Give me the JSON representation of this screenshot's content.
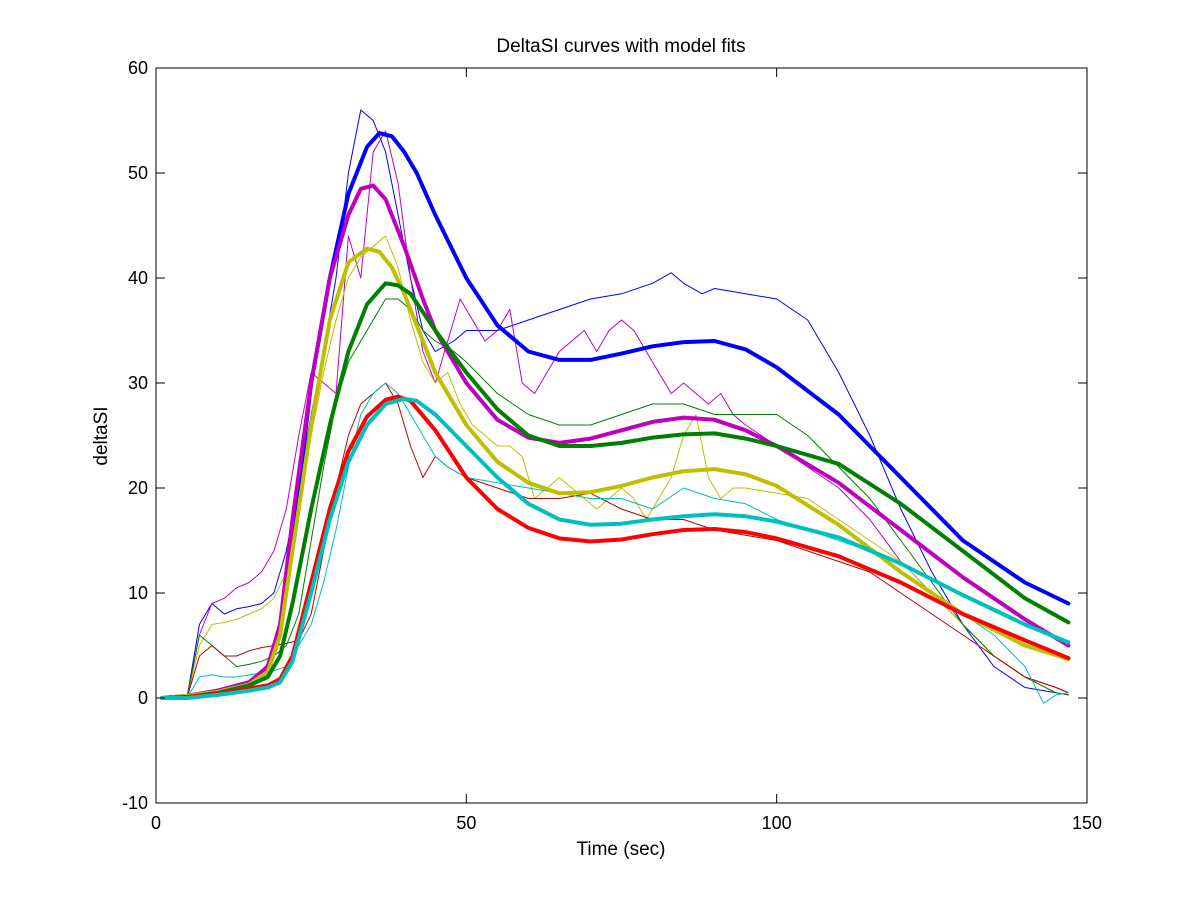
{
  "chart_data": {
    "type": "line",
    "title": "DeltaSI curves with model fits",
    "xlabel": "Time (sec)",
    "ylabel": "deltaSI",
    "xlim": [
      0,
      150
    ],
    "ylim": [
      -10,
      60
    ],
    "xticks": [
      0,
      50,
      100,
      150
    ],
    "yticks": [
      -10,
      0,
      10,
      20,
      30,
      40,
      50,
      60
    ],
    "grid": false,
    "legend": "none",
    "series": [
      {
        "kind": "raw",
        "color": "#0000ff",
        "x": [
          1,
          5,
          7,
          9,
          11,
          13,
          15,
          17,
          19,
          21,
          23,
          25,
          27,
          29,
          31,
          33,
          35,
          37,
          39,
          41,
          43,
          45,
          48,
          50,
          55,
          60,
          65,
          70,
          75,
          80,
          83,
          85,
          88,
          90,
          95,
          100,
          105,
          110,
          115,
          120,
          125,
          130,
          135,
          140,
          145,
          147
        ],
        "y": [
          0,
          0,
          7,
          9,
          8,
          8.5,
          8.7,
          9,
          10,
          14,
          20,
          27,
          33,
          40,
          50,
          56,
          55,
          52,
          46,
          40,
          35,
          33,
          34,
          35,
          35,
          36,
          37,
          38,
          38.5,
          39.5,
          40.5,
          39.5,
          38.5,
          39,
          38.5,
          38,
          36,
          31,
          25,
          18,
          12,
          7,
          3,
          1,
          0.5,
          0.3
        ]
      },
      {
        "kind": "raw",
        "color": "#bf00bf",
        "x": [
          1,
          5,
          7,
          9,
          11,
          13,
          15,
          17,
          19,
          21,
          23,
          25,
          27,
          29,
          31,
          33,
          35,
          37,
          39,
          41,
          43,
          45,
          47,
          49,
          51,
          53,
          55,
          57,
          59,
          61,
          63,
          65,
          67,
          69,
          71,
          73,
          75,
          77,
          79,
          81,
          83,
          85,
          87,
          89,
          91,
          93,
          95,
          100,
          105,
          110,
          115,
          120,
          125,
          130,
          135,
          140,
          145,
          147
        ],
        "y": [
          0,
          0,
          6,
          9,
          9.5,
          10.5,
          11,
          12,
          14,
          18,
          25,
          31,
          30,
          29,
          44,
          40,
          52,
          54,
          49,
          40,
          33,
          30,
          34,
          38,
          36,
          34,
          35,
          37,
          30,
          29,
          31,
          33,
          34,
          35,
          33,
          35,
          36,
          35,
          33,
          31,
          29,
          30,
          29,
          28,
          29,
          27,
          26,
          24,
          22,
          20,
          17,
          13,
          10,
          7,
          4,
          2,
          1,
          0.5
        ]
      },
      {
        "kind": "raw",
        "color": "#bfbf00",
        "x": [
          1,
          5,
          7,
          9,
          11,
          13,
          15,
          17,
          19,
          21,
          23,
          25,
          27,
          29,
          31,
          33,
          35,
          37,
          39,
          41,
          43,
          45,
          47,
          49,
          51,
          53,
          55,
          57,
          59,
          61,
          63,
          65,
          67,
          69,
          71,
          73,
          75,
          77,
          79,
          81,
          83,
          85,
          87,
          89,
          91,
          93,
          95,
          100,
          105,
          110,
          115,
          120,
          125,
          130,
          135,
          140,
          145,
          147
        ],
        "y": [
          0,
          0,
          5,
          7,
          7.2,
          7.5,
          8,
          8.5,
          9.5,
          12,
          18,
          25,
          31,
          36,
          40,
          42,
          43,
          44,
          41,
          36,
          32,
          30,
          31,
          28,
          26,
          25,
          24,
          24,
          23,
          19,
          20,
          21,
          20,
          19,
          18,
          19,
          20,
          19,
          17,
          19,
          21,
          25,
          27,
          21,
          19,
          20,
          20,
          19.5,
          19,
          17,
          15,
          13,
          10,
          7,
          4,
          2,
          0.5,
          0.3
        ]
      },
      {
        "kind": "raw",
        "color": "#008000",
        "x": [
          1,
          5,
          7,
          9,
          11,
          13,
          15,
          17,
          19,
          21,
          23,
          25,
          27,
          29,
          31,
          33,
          35,
          37,
          39,
          41,
          43,
          45,
          48,
          50,
          55,
          60,
          65,
          70,
          75,
          80,
          85,
          90,
          95,
          100,
          105,
          110,
          115,
          120,
          125,
          130,
          135,
          140,
          145,
          147
        ],
        "y": [
          0,
          0,
          6,
          5,
          4,
          3,
          3.2,
          3.5,
          4,
          5,
          8,
          15,
          22,
          28,
          32,
          34,
          36,
          38,
          38,
          37,
          35,
          34,
          33,
          32,
          29,
          27,
          26,
          26,
          27,
          28,
          28,
          27,
          27,
          27,
          25,
          22,
          19,
          15,
          11,
          7,
          4,
          2,
          0.5,
          0.3
        ]
      },
      {
        "kind": "raw",
        "color": "#bf0000",
        "x": [
          1,
          5,
          7,
          9,
          11,
          13,
          15,
          17,
          19,
          21,
          23,
          25,
          27,
          29,
          31,
          33,
          35,
          37,
          39,
          41,
          43,
          45,
          47,
          50,
          55,
          60,
          65,
          70,
          75,
          80,
          85,
          90,
          95,
          100,
          105,
          110,
          115,
          120,
          125,
          130,
          135,
          140,
          145,
          147
        ],
        "y": [
          0,
          0,
          4,
          5,
          4,
          4,
          4.5,
          4.8,
          5,
          5.2,
          5.5,
          8,
          14,
          20,
          25,
          28,
          29,
          30,
          28,
          24,
          21,
          23,
          22,
          21,
          20,
          19,
          19,
          19.5,
          18,
          17,
          17,
          16,
          15.5,
          15,
          14,
          13,
          12,
          10,
          8,
          6,
          4,
          2,
          1,
          0.5
        ]
      },
      {
        "kind": "raw",
        "color": "#00bfbf",
        "x": [
          1,
          5,
          7,
          9,
          11,
          13,
          15,
          17,
          19,
          21,
          23,
          25,
          27,
          29,
          31,
          33,
          35,
          37,
          39,
          41,
          43,
          45,
          47,
          50,
          55,
          60,
          65,
          70,
          75,
          80,
          85,
          90,
          95,
          100,
          105,
          110,
          115,
          120,
          125,
          130,
          135,
          140,
          143,
          145,
          147
        ],
        "y": [
          0,
          0,
          2,
          2.2,
          2,
          2,
          2.2,
          2.4,
          2.6,
          3,
          5,
          7,
          11,
          16,
          22,
          27,
          29,
          30,
          29,
          27,
          25,
          23,
          22,
          21,
          20.5,
          20,
          19.5,
          19,
          19,
          18,
          20,
          19,
          18.5,
          17,
          16,
          15,
          14,
          12,
          10,
          8,
          6,
          3,
          -0.5,
          0.3,
          0.5
        ]
      },
      {
        "kind": "fit",
        "color": "#0000ff",
        "x": [
          1,
          5,
          10,
          15,
          18,
          20,
          22,
          25,
          28,
          31,
          34,
          36,
          38,
          40,
          42,
          45,
          50,
          55,
          60,
          65,
          70,
          75,
          80,
          85,
          90,
          95,
          100,
          110,
          120,
          130,
          140,
          147
        ],
        "y": [
          0,
          0.2,
          0.7,
          1.5,
          2.5,
          6,
          15,
          30,
          40,
          48,
          52.5,
          53.8,
          53.5,
          52,
          50,
          46,
          40,
          35.5,
          33,
          32.2,
          32.2,
          32.8,
          33.5,
          33.9,
          34,
          33.2,
          31.5,
          27,
          21,
          15,
          11,
          9
        ]
      },
      {
        "kind": "fit",
        "color": "#bf00bf",
        "x": [
          1,
          5,
          10,
          15,
          18,
          20,
          22,
          25,
          28,
          31,
          33,
          35,
          37,
          40,
          43,
          45,
          50,
          55,
          60,
          65,
          70,
          75,
          80,
          85,
          90,
          95,
          100,
          110,
          120,
          130,
          140,
          147
        ],
        "y": [
          0,
          0.2,
          0.7,
          1.5,
          3,
          7,
          17,
          30,
          40,
          46,
          48.5,
          48.8,
          47.5,
          43,
          38,
          35,
          30,
          26.5,
          24.8,
          24.3,
          24.7,
          25.5,
          26.3,
          26.7,
          26.5,
          25.5,
          24,
          20.5,
          16,
          11.5,
          7.5,
          5
        ]
      },
      {
        "kind": "fit",
        "color": "#bfbf00",
        "x": [
          1,
          5,
          10,
          15,
          18,
          20,
          22,
          25,
          28,
          31,
          34,
          36,
          38,
          40,
          43,
          45,
          50,
          55,
          60,
          65,
          70,
          75,
          80,
          85,
          90,
          95,
          100,
          110,
          120,
          130,
          140,
          147
        ],
        "y": [
          0,
          0.2,
          0.6,
          1.3,
          2.5,
          6,
          14,
          26,
          36,
          41.5,
          42.8,
          42.5,
          41,
          38.5,
          34,
          31,
          26,
          22.5,
          20.5,
          19.5,
          19.6,
          20.2,
          21,
          21.6,
          21.8,
          21.3,
          20.2,
          16.5,
          12,
          8,
          5,
          3.7
        ]
      },
      {
        "kind": "fit",
        "color": "#008000",
        "x": [
          1,
          5,
          10,
          15,
          18,
          20,
          22,
          25,
          28,
          31,
          34,
          37,
          39,
          41,
          45,
          50,
          55,
          60,
          65,
          70,
          75,
          80,
          85,
          90,
          95,
          100,
          110,
          120,
          130,
          140,
          147
        ],
        "y": [
          0,
          0.1,
          0.5,
          1.2,
          2,
          4,
          9,
          18,
          26,
          33,
          37.5,
          39.5,
          39.3,
          38.5,
          35,
          31,
          27.5,
          25,
          24,
          24,
          24.3,
          24.8,
          25.1,
          25.2,
          24.7,
          24,
          22.3,
          18.5,
          14,
          9.5,
          7.2
        ]
      },
      {
        "kind": "fit",
        "color": "#ff0000",
        "x": [
          1,
          5,
          10,
          15,
          18,
          20,
          22,
          25,
          28,
          31,
          34,
          37,
          39,
          41,
          45,
          50,
          55,
          60,
          65,
          70,
          75,
          80,
          85,
          90,
          95,
          100,
          110,
          120,
          130,
          140,
          147
        ],
        "y": [
          0,
          0.1,
          0.4,
          0.9,
          1.2,
          1.8,
          4,
          11,
          18,
          23.5,
          26.8,
          28.4,
          28.7,
          28.3,
          25.5,
          21,
          18,
          16.2,
          15.2,
          14.9,
          15.1,
          15.6,
          16,
          16.1,
          15.8,
          15.2,
          13.5,
          11,
          8,
          5.5,
          3.8
        ]
      },
      {
        "kind": "fit",
        "color": "#00bfbf",
        "x": [
          1,
          5,
          10,
          15,
          18,
          20,
          22,
          25,
          28,
          31,
          34,
          37,
          40,
          42,
          45,
          50,
          55,
          60,
          65,
          70,
          75,
          80,
          85,
          90,
          95,
          100,
          110,
          120,
          130,
          140,
          147
        ],
        "y": [
          0,
          0,
          0.3,
          0.7,
          1,
          1.5,
          3.5,
          10,
          17,
          22.5,
          26,
          28,
          28.5,
          28.3,
          27,
          24,
          21,
          18.5,
          17,
          16.5,
          16.6,
          17,
          17.3,
          17.5,
          17.3,
          16.8,
          15.3,
          12.8,
          9.8,
          7,
          5.3
        ]
      }
    ]
  }
}
